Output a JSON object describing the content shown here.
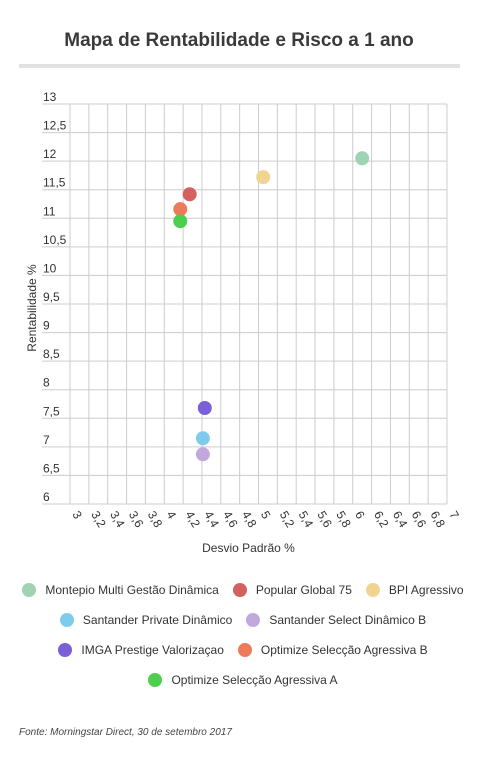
{
  "title": "Mapa de Rentabilidade e Risco a 1 ano",
  "source": "Fonte: Morningstar Direct, 30 de setembro 2017",
  "chart_data": {
    "type": "scatter",
    "title": "Mapa de Rentabilidade e Risco a 1 ano",
    "xlabel": "Desvio Padrão %",
    "ylabel": "Rentabilidade %",
    "xlim": [
      3,
      7
    ],
    "ylim": [
      6,
      13
    ],
    "grid": true,
    "legend_position": "bottom",
    "x_ticks": [
      "3",
      "3,2",
      "3,4",
      "3,6",
      "3,8",
      "4",
      "4,2",
      "4,4",
      "4,6",
      "4,8",
      "5",
      "5,2",
      "5,4",
      "5,6",
      "5,8",
      "6",
      "6,2",
      "6,4",
      "6,6",
      "6,8",
      "7"
    ],
    "y_ticks": [
      "6",
      "6,5",
      "7",
      "7,5",
      "8",
      "8,5",
      "9",
      "9,5",
      "10",
      "10,5",
      "11",
      "11,5",
      "12",
      "12,5",
      "13"
    ],
    "series": [
      {
        "name": "Montepio Multi Gestão Dinâmica",
        "color": "#9fd3b4",
        "x": 6.1,
        "y": 12.05
      },
      {
        "name": "Popular Global 75",
        "color": "#d46060",
        "x": 4.27,
        "y": 11.42
      },
      {
        "name": "BPI Agressivo",
        "color": "#f0d490",
        "x": 5.05,
        "y": 11.72
      },
      {
        "name": "Santander Private Dinâmico",
        "color": "#7ecbec",
        "x": 4.41,
        "y": 7.15
      },
      {
        "name": "Santander Select Dinâmico B",
        "color": "#c2a8dc",
        "x": 4.41,
        "y": 6.87
      },
      {
        "name": "IMGA Prestige Valorizaçao",
        "color": "#7a5fd6",
        "x": 4.43,
        "y": 7.68
      },
      {
        "name": "Optimize Selecção Agressiva B",
        "color": "#ee7a5a",
        "x": 4.17,
        "y": 11.16
      },
      {
        "name": "Optimize Selecção Agressiva A",
        "color": "#4ccf4c",
        "x": 4.17,
        "y": 10.95
      }
    ]
  }
}
